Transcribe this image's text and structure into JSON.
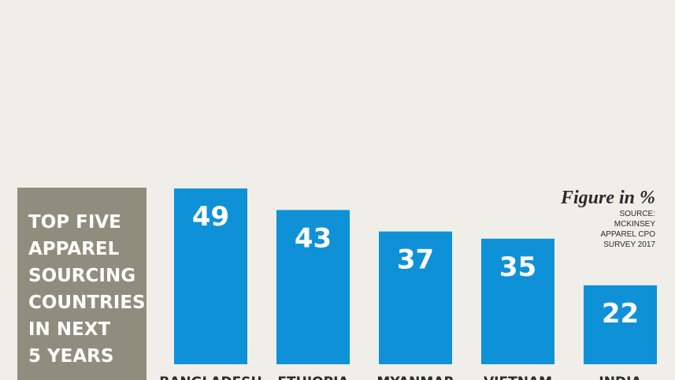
{
  "chart_data": {
    "type": "bar",
    "title": [
      "TOP FIVE",
      "APPAREL",
      "SOURCING",
      "COUNTRIES",
      "IN NEXT",
      "5 YEARS"
    ],
    "annotation": "Figure in %",
    "source": [
      "SOURCE:",
      "MCKINSEY",
      "APPAREL CPO",
      "SURVEY 2017"
    ],
    "categories": [
      "BANGLADESH",
      "ETHIOPIA",
      "MYANMAR",
      "VIETNAM",
      "INDIA"
    ],
    "values": [
      49,
      43,
      37,
      35,
      22
    ],
    "color": "#0f91d8"
  }
}
